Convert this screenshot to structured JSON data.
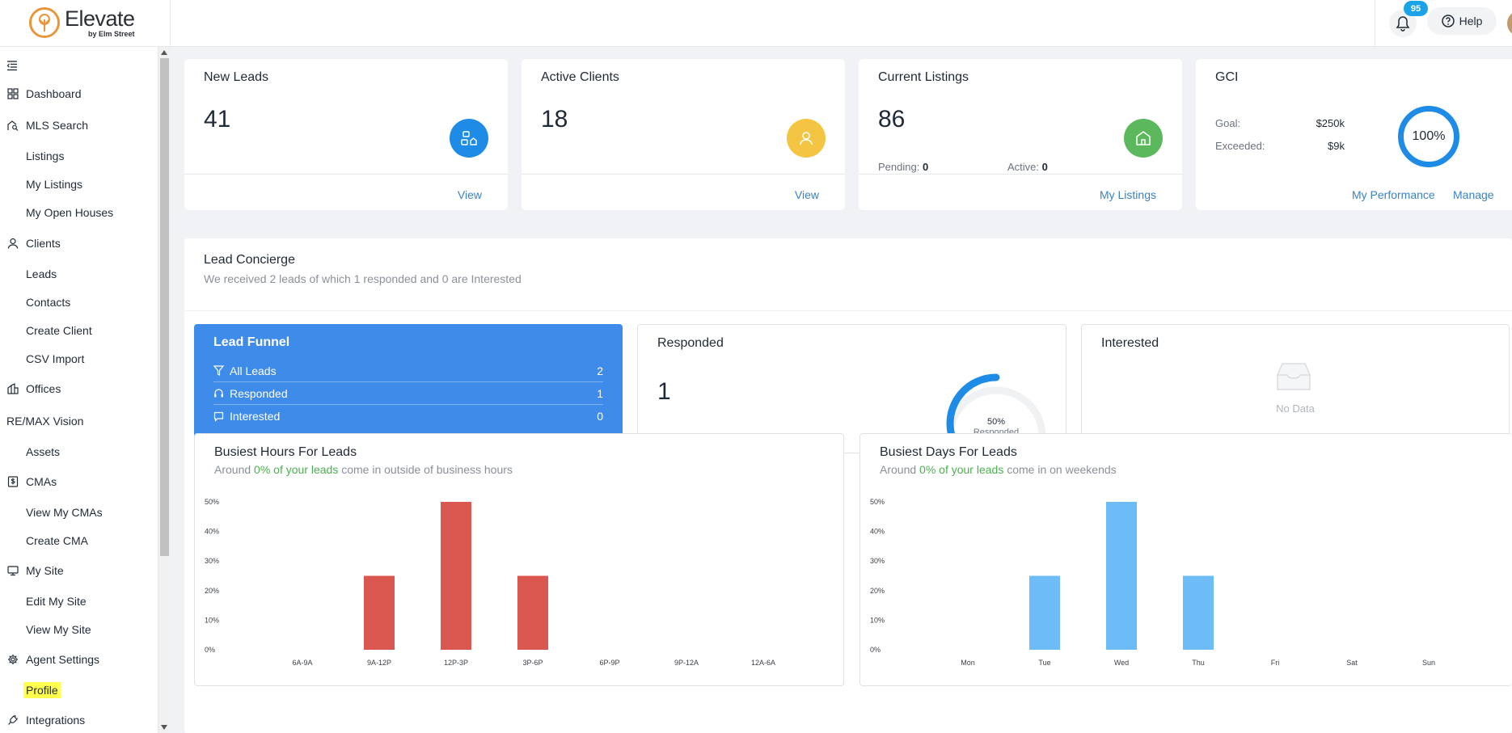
{
  "header": {
    "logo_title": "Elevate",
    "logo_sub": "by Elm Street",
    "notification_count": "95",
    "help_label": "Help"
  },
  "sidebar": {
    "items": [
      {
        "label": "Dashboard",
        "icon": "grid-icon",
        "type": "main"
      },
      {
        "label": "MLS Search",
        "icon": "house-search-icon",
        "type": "main"
      },
      {
        "label": "Listings",
        "type": "sub"
      },
      {
        "label": "My Listings",
        "type": "sub"
      },
      {
        "label": "My Open Houses",
        "type": "sub"
      },
      {
        "label": "Clients",
        "icon": "user-icon",
        "type": "main"
      },
      {
        "label": "Leads",
        "type": "sub"
      },
      {
        "label": "Contacts",
        "type": "sub"
      },
      {
        "label": "Create Client",
        "type": "sub"
      },
      {
        "label": "CSV Import",
        "type": "sub"
      },
      {
        "label": "Offices",
        "icon": "building-icon",
        "type": "main"
      },
      {
        "label": "RE/MAX Vision",
        "type": "plain"
      },
      {
        "label": "Assets",
        "type": "sub"
      },
      {
        "label": "CMAs",
        "icon": "dollar-doc-icon",
        "type": "main"
      },
      {
        "label": "View My CMAs",
        "type": "sub"
      },
      {
        "label": "Create CMA",
        "type": "sub"
      },
      {
        "label": "My Site",
        "icon": "monitor-icon",
        "type": "main"
      },
      {
        "label": "Edit My Site",
        "type": "sub"
      },
      {
        "label": "View My Site",
        "type": "sub"
      },
      {
        "label": "Agent Settings",
        "icon": "gear-icon",
        "type": "main"
      },
      {
        "label": "Profile",
        "type": "sub",
        "highlighted": true
      },
      {
        "label": "Integrations",
        "icon": "plug-icon",
        "type": "main"
      }
    ]
  },
  "stats": {
    "new_leads": {
      "title": "New Leads",
      "value": "41",
      "link": "View",
      "color": "#1e8be6"
    },
    "active_clients": {
      "title": "Active Clients",
      "value": "18",
      "link": "View",
      "color": "#f4c542"
    },
    "current_listings": {
      "title": "Current Listings",
      "value": "86",
      "pending_label": "Pending:",
      "pending_value": "0",
      "active_label": "Active:",
      "active_value": "0",
      "link": "My Listings",
      "color": "#5cb85c"
    },
    "gci": {
      "title": "GCI",
      "goal_label": "Goal:",
      "goal_value": "$250k",
      "exceeded_label": "Exceeded:",
      "exceeded_value": "$9k",
      "ring_value": "100%",
      "link_performance": "My Performance",
      "link_manage": "Manage"
    }
  },
  "concierge": {
    "title": "Lead Concierge",
    "subtitle": "We received 2 leads of which 1 responded and 0 are Interested",
    "funnel": {
      "title": "Lead Funnel",
      "rows": [
        {
          "label": "All Leads",
          "count": "2",
          "icon": "filter-icon"
        },
        {
          "label": "Responded",
          "count": "1",
          "icon": "headset-icon"
        },
        {
          "label": "Interested",
          "count": "0",
          "icon": "chat-icon"
        }
      ]
    },
    "responded": {
      "title": "Responded",
      "value": "1",
      "gauge_pct": "50%",
      "gauge_label": "Responded",
      "gauge_fraction": 0.5
    },
    "interested": {
      "title": "Interested",
      "empty_text": "No Data"
    }
  },
  "charts": {
    "hours": {
      "title": "Busiest Hours For Leads",
      "sub_prefix": "Around ",
      "sub_highlight": "0% of your leads",
      "sub_suffix": " come in outside of business hours"
    },
    "days": {
      "title": "Busiest Days For Leads",
      "sub_prefix": "Around ",
      "sub_highlight": "0% of your leads",
      "sub_suffix": " come in on weekends"
    }
  },
  "chart_data": [
    {
      "type": "bar",
      "title": "Busiest Hours For Leads",
      "categories": [
        "6A-9A",
        "9A-12P",
        "12P-3P",
        "3P-6P",
        "6P-9P",
        "9P-12A",
        "12A-6A"
      ],
      "values": [
        0,
        25,
        50,
        25,
        0,
        0,
        0
      ],
      "yticks": [
        "0%",
        "10%",
        "20%",
        "30%",
        "40%",
        "50%"
      ],
      "ylim": [
        0,
        50
      ],
      "color": "#d9574f"
    },
    {
      "type": "bar",
      "title": "Busiest Days For Leads",
      "categories": [
        "Mon",
        "Tue",
        "Wed",
        "Thu",
        "Fri",
        "Sat",
        "Sun"
      ],
      "values": [
        0,
        25,
        50,
        25,
        0,
        0,
        0
      ],
      "yticks": [
        "0%",
        "10%",
        "20%",
        "30%",
        "40%",
        "50%"
      ],
      "ylim": [
        0,
        50
      ],
      "color": "#6ebcf7"
    }
  ]
}
